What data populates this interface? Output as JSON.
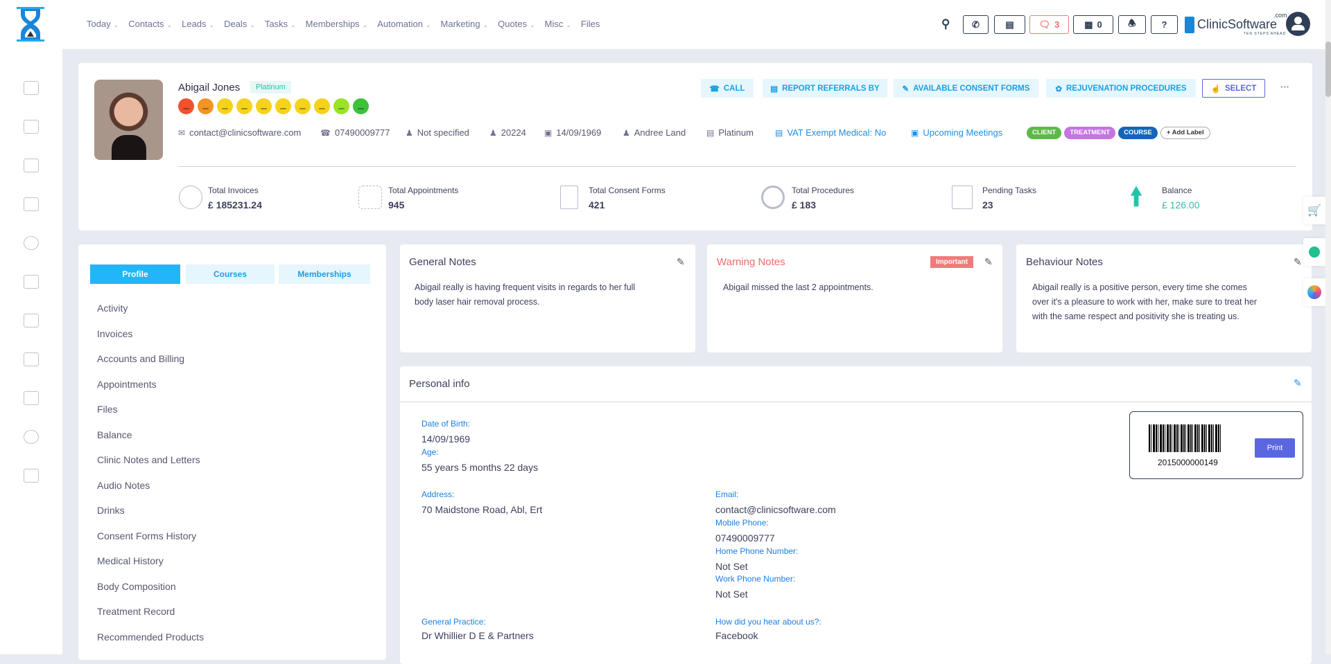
{
  "nav": {
    "items": [
      "Today",
      "Contacts",
      "Leads",
      "Deals",
      "Tasks",
      "Memberships",
      "Automation",
      "Marketing",
      "Quotes",
      "Misc",
      "Files"
    ],
    "dropdown": [
      true,
      true,
      true,
      true,
      true,
      true,
      true,
      true,
      true,
      true,
      false
    ]
  },
  "topbar": {
    "messages_count": "3",
    "store_count": "0",
    "brand": "ClinicSoftware",
    "brand_suffix": ".com",
    "brand_tagline": "TEN STEPS AHEAD"
  },
  "client": {
    "name": "Abigail Jones",
    "tier_badge": "Platinum",
    "satisfaction_faces": [
      "#f0522d",
      "#f39425",
      "#f5d21c",
      "#f5d21c",
      "#f5d21c",
      "#f5d21c",
      "#f5d21c",
      "#f5d21c",
      "#9be228",
      "#3cc13b"
    ],
    "email": "contact@clinicsoftware.com",
    "phone": "07490009777",
    "gender": "Not specified",
    "id": "20224",
    "dob": "14/09/1969",
    "staff": "Andree Land",
    "membership": "Platinum",
    "vat": "VAT Exempt Medical: No",
    "meetings": "Upcoming Meetings",
    "labels": [
      {
        "text": "CLIENT",
        "color": "#5cb946"
      },
      {
        "text": "TREATMENT",
        "color": "#c574e0"
      },
      {
        "text": "COURSE",
        "color": "#1565b8"
      }
    ],
    "add_label": "+ Add Label"
  },
  "actions": {
    "call": "CALL",
    "report": "REPORT REFERRALS BY",
    "consent": "AVAILABLE CONSENT FORMS",
    "rejuvenation": "REJUVENATION PROCEDURES",
    "select": "SELECT",
    "more": "···"
  },
  "stats": [
    {
      "label": "Total Invoices",
      "value": "£ 185231.24"
    },
    {
      "label": "Total Appointments",
      "value": "945"
    },
    {
      "label": "Total Consent Forms",
      "value": "421"
    },
    {
      "label": "Total Procedures",
      "value": "£ 183"
    },
    {
      "label": "Pending Tasks",
      "value": "23"
    },
    {
      "label": "Balance",
      "value": "£ 126.00"
    }
  ],
  "tabs": [
    "Profile",
    "Courses",
    "Memberships"
  ],
  "menu": [
    "Activity",
    "Invoices",
    "Accounts and Billing",
    "Appointments",
    "Files",
    "Balance",
    "Clinic Notes and Letters",
    "Audio Notes",
    "Drinks",
    "Consent Forms History",
    "Medical History",
    "Body Composition",
    "Treatment Record",
    "Recommended Products"
  ],
  "notes": {
    "general": {
      "title": "General Notes",
      "text": "Abigail really is having frequent visits in regards to her full body laser hair removal process."
    },
    "warning": {
      "title": "Warning Notes",
      "badge": "Important",
      "text": "Abigail missed the last 2 appointments."
    },
    "behaviour": {
      "title": "Behaviour Notes",
      "text": "Abigail really is a positive person, every time she comes over it's a pleasure to work with her, make sure to treat her with the same respect and positivity she is treating us."
    }
  },
  "personal": {
    "title": "Personal info",
    "dob_label": "Date of Birth:",
    "dob": "14/09/1969",
    "age_label": "Age:",
    "age": "55 years 5 months 22 days",
    "address_label": "Address:",
    "address": "70 Maidstone Road, Abl, Ert",
    "email_label": "Email:",
    "email": "contact@clinicsoftware.com",
    "mobile_label": "Mobile Phone:",
    "mobile": "07490009777",
    "home_label": "Home Phone Number:",
    "home": "Not Set",
    "work_label": "Work Phone Number:",
    "work": "Not Set",
    "gp_label": "General Practice:",
    "gp": "Dr Whillier D E & Partners",
    "hear_label": "How did you hear about us?:",
    "hear": "Facebook",
    "barcode": "2015000000149",
    "print": "Print"
  }
}
